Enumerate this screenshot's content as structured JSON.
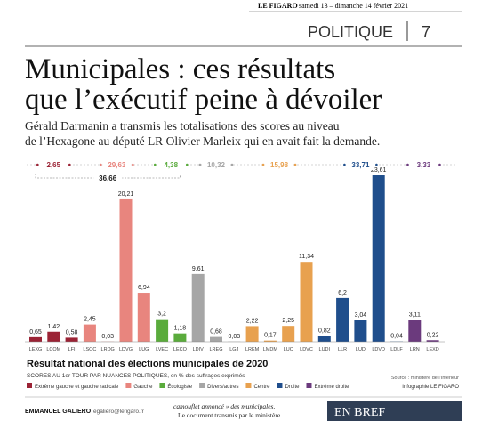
{
  "header": {
    "masthead": "LE FIGARO",
    "date": "samedi 13 – dimanche 14 février 2021",
    "section": "POLITIQUE",
    "page": "7"
  },
  "headline": {
    "lines": [
      "Municipales : ces résultats",
      "que l’exécutif peine à dévoiler"
    ],
    "standfirst": [
      "Gérald Darmanin a transmis les totalisations des scores au niveau",
      "de l’Hexagone au député LR Olivier Marleix qui en avait fait la demande."
    ]
  },
  "chart_data": {
    "type": "bar",
    "title": "Résultat national des élections municipales de 2020",
    "subtitle": "SCORES AU 1er TOUR PAR NUANCES POLITIQUES, en % des suffrages exprimés",
    "bracket_label": "36,66",
    "series": [
      {
        "name": "Extrême gauche et gauche radicale",
        "color": "#9b2335",
        "total": "2,65",
        "categories": [
          "LEXG",
          "LCOM",
          "LFI"
        ],
        "values": [
          0.65,
          1.42,
          0.58
        ],
        "value_labels": [
          "0,65",
          "1,42",
          "0,58"
        ]
      },
      {
        "name": "Gauche",
        "color": "#e8857e",
        "total": "29,63",
        "categories": [
          "LSOC",
          "LRDG",
          "LDVG",
          "LUG"
        ],
        "values": [
          2.45,
          0.03,
          20.21,
          6.94
        ],
        "value_labels": [
          "2,45",
          "0,03",
          "20,21",
          "6,94"
        ]
      },
      {
        "name": "Écologiste",
        "color": "#5aab3c",
        "total": "4,38",
        "categories": [
          "LVEC",
          "LECO"
        ],
        "values": [
          3.2,
          1.18
        ],
        "value_labels": [
          "3,2",
          "1,18"
        ]
      },
      {
        "name": "Divers/autres",
        "color": "#a6a6a6",
        "total": "10,32",
        "categories": [
          "LDIV",
          "LREG",
          "LGJ"
        ],
        "values": [
          9.61,
          0.68,
          0.03
        ],
        "value_labels": [
          "9,61",
          "0,68",
          "0,03"
        ]
      },
      {
        "name": "Centre",
        "color": "#e8a14f",
        "total": "15,98",
        "categories": [
          "LREM",
          "LMDM",
          "LUC",
          "LDVC"
        ],
        "values": [
          2.22,
          0.17,
          2.25,
          11.34
        ],
        "value_labels": [
          "2,22",
          "0,17",
          "2,25",
          "11,34"
        ]
      },
      {
        "name": "Droite",
        "color": "#1f4e8c",
        "total": "33,71",
        "categories": [
          "LUDI",
          "LLR",
          "LUD",
          "LDVD",
          "LDLF"
        ],
        "values": [
          0.82,
          6.2,
          3.04,
          23.61,
          0.04
        ],
        "value_labels": [
          "0,82",
          "6,2",
          "3,04",
          "23,61",
          "0,04"
        ]
      },
      {
        "name": "Extrême droite",
        "color": "#6b3a7d",
        "total": "3,33",
        "categories": [
          "LRN",
          "LEXD"
        ],
        "values": [
          3.11,
          0.22
        ],
        "value_labels": [
          "3,11",
          "0,22"
        ]
      }
    ],
    "source": "Source : ministère de l’Intérieur",
    "credit": "Infographie LE FIGARO"
  },
  "footer": {
    "author": "EMMANUEL GALIERO",
    "email": "egaliero@lefigaro.fr",
    "column": [
      "camouflet annoncé » des municipales.",
      "Le document transmis par le ministère"
    ],
    "box": "EN BREF"
  }
}
